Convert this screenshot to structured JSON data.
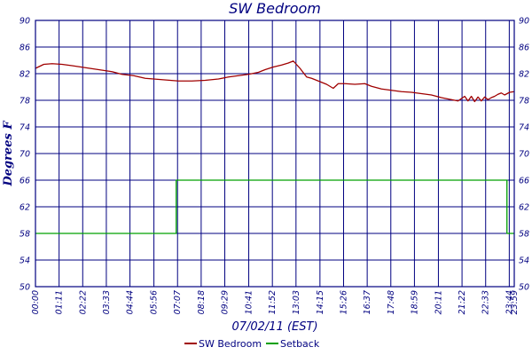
{
  "chart_data": {
    "type": "line",
    "title": "SW Bedroom",
    "xlabel": "07/02/11 (EST)",
    "ylabel": "Degrees F",
    "ylim": [
      50,
      90
    ],
    "yticks": [
      50,
      54,
      58,
      62,
      66,
      70,
      74,
      78,
      82,
      86,
      90
    ],
    "x_ticks": [
      "00:00",
      "01:11",
      "02:22",
      "03:33",
      "04:44",
      "05:56",
      "07:07",
      "08:18",
      "09:29",
      "10:41",
      "11:52",
      "13:03",
      "14:15",
      "15:26",
      "16:37",
      "17:48",
      "18:59",
      "20:11",
      "21:22",
      "22:33",
      "23:44",
      "23:59"
    ],
    "grid": true,
    "legend_position": "bottom",
    "colors": {
      "sw_bedroom": "#a00000",
      "setback": "#00a000",
      "axis": "#000080"
    },
    "series": [
      {
        "name": "SW Bedroom",
        "x": [
          "00:00",
          "00:25",
          "00:50",
          "01:20",
          "01:50",
          "02:30",
          "03:10",
          "03:50",
          "04:20",
          "04:55",
          "05:30",
          "06:20",
          "07:10",
          "07:50",
          "08:30",
          "09:10",
          "09:40",
          "10:10",
          "10:40",
          "11:10",
          "11:30",
          "11:55",
          "12:20",
          "12:40",
          "12:55",
          "13:15",
          "13:35",
          "13:50",
          "14:10",
          "14:35",
          "14:55",
          "15:10",
          "15:30",
          "16:00",
          "16:30",
          "16:50",
          "17:20",
          "17:50",
          "18:20",
          "18:50",
          "19:20",
          "19:50",
          "20:20",
          "20:50",
          "21:10",
          "21:30",
          "21:40",
          "21:50",
          "22:00",
          "22:10",
          "22:20",
          "22:30",
          "22:40",
          "22:50",
          "23:00",
          "23:10",
          "23:20",
          "23:30",
          "23:45",
          "23:59"
        ],
        "values": [
          82.8,
          83.4,
          83.5,
          83.4,
          83.2,
          82.9,
          82.6,
          82.3,
          81.9,
          81.7,
          81.3,
          81.1,
          80.9,
          80.9,
          81.0,
          81.2,
          81.5,
          81.7,
          81.9,
          82.2,
          82.6,
          83.0,
          83.3,
          83.6,
          83.9,
          82.8,
          81.5,
          81.3,
          80.9,
          80.4,
          79.8,
          80.5,
          80.5,
          80.4,
          80.5,
          80.1,
          79.7,
          79.5,
          79.3,
          79.2,
          79.0,
          78.8,
          78.4,
          78.1,
          77.9,
          78.6,
          77.9,
          78.6,
          77.8,
          78.5,
          77.9,
          78.5,
          78.1,
          78.4,
          78.6,
          78.9,
          79.1,
          78.8,
          79.2,
          79.3
        ]
      },
      {
        "name": "Setback",
        "x": [
          "00:00",
          "07:03",
          "07:03",
          "23:37",
          "23:37",
          "23:59"
        ],
        "values": [
          58,
          58,
          66,
          66,
          58,
          58
        ]
      }
    ]
  }
}
